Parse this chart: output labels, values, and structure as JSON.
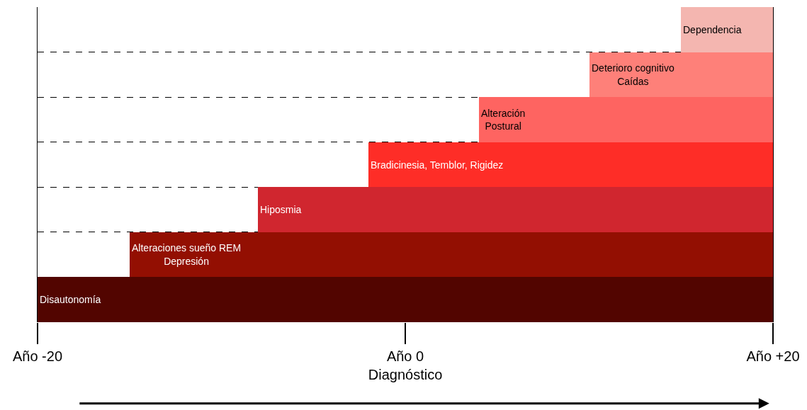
{
  "chart_data": {
    "type": "bar",
    "orientation": "horizontal",
    "categories": [
      "Dependencia",
      "Deterioro cognitivo\nCaídas",
      "Alteración\nPostural",
      "Bradicinesia, Temblor, Rigidez",
      "Hiposmia",
      "Alteraciones sueño REM\nDepresión",
      "Disautonomía"
    ],
    "base": [
      15,
      10,
      4,
      -2,
      -8,
      -15,
      -20
    ],
    "values": [
      5,
      10,
      16,
      22,
      28,
      35,
      40
    ],
    "colors": [
      "#f4b6b0",
      "#fe8079",
      "#fe6461",
      "#fe2d27",
      "#d0262f",
      "#930f02",
      "#520500"
    ],
    "xlim": [
      -20,
      20
    ],
    "xticks": [
      {
        "value": -20,
        "label": "Año -20"
      },
      {
        "value": 0,
        "label": "Año 0\nDiagnóstico"
      },
      {
        "value": 20,
        "label": "Año +20"
      }
    ],
    "grid": "y",
    "line_style": "dashed",
    "tick_labels": "x",
    "legend": false
  }
}
